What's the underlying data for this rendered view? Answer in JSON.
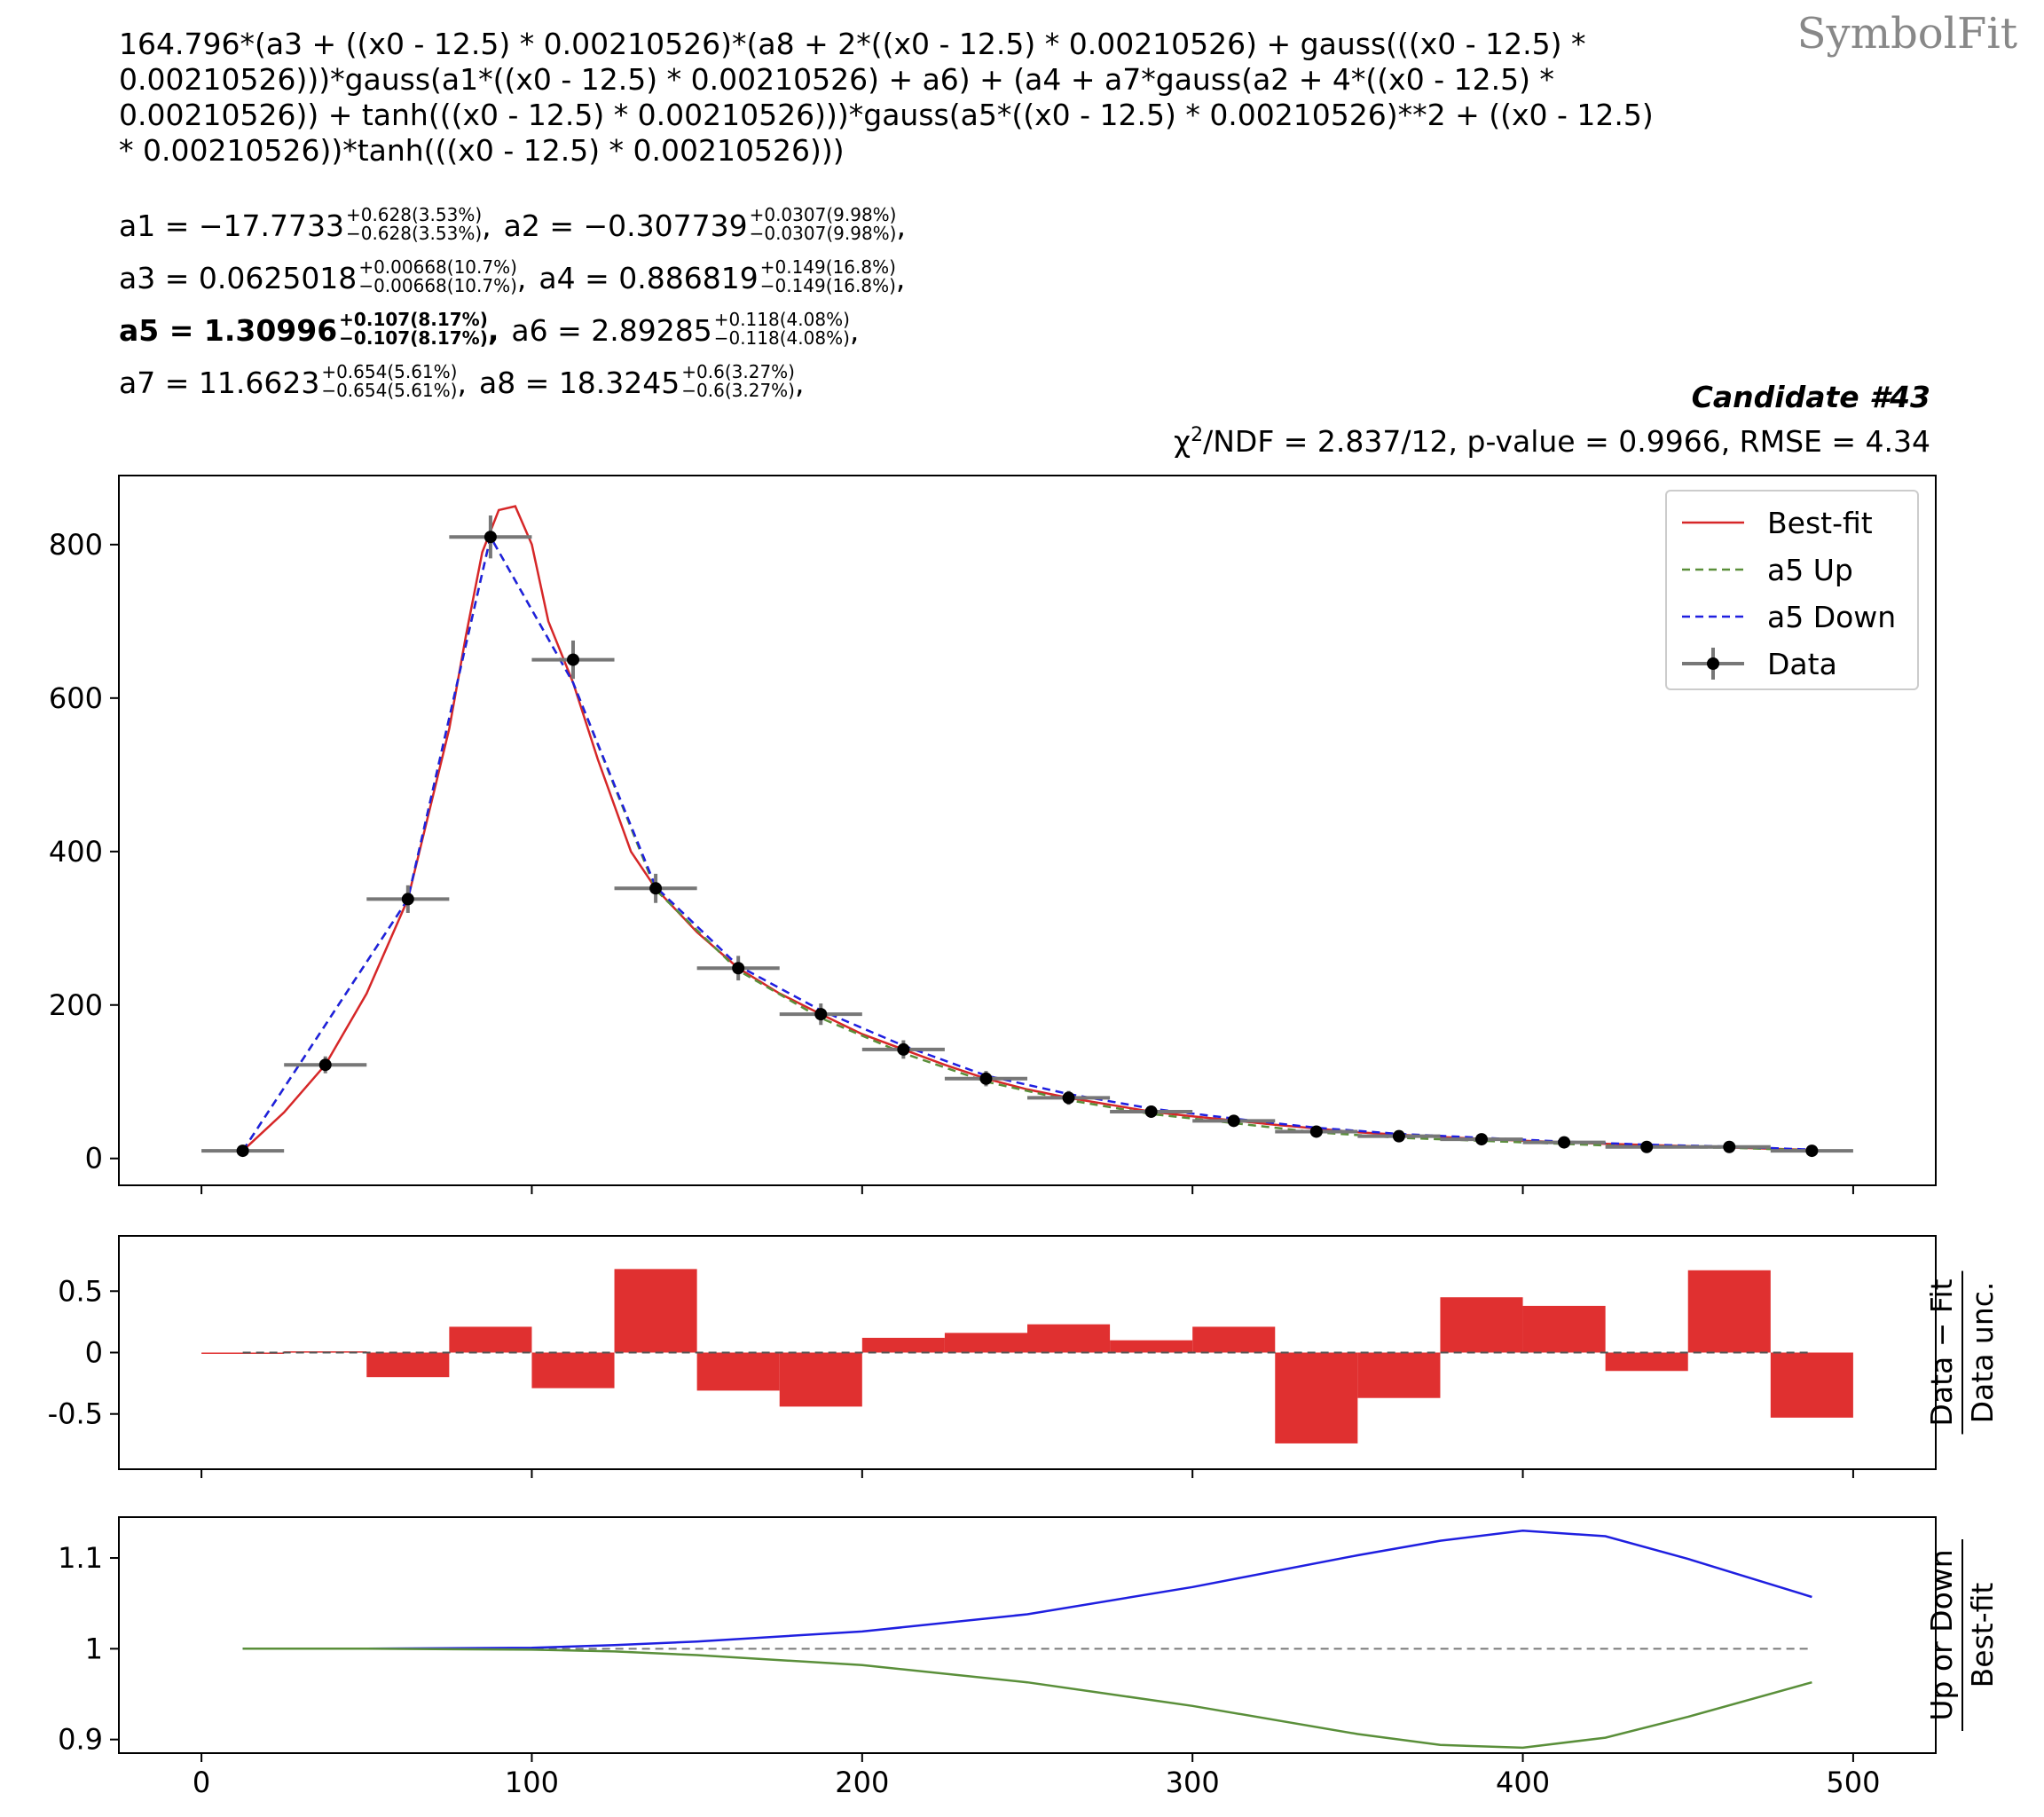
{
  "logo": "SymbolFit",
  "formula": "164.796*(a3 + ((x0 - 12.5) * 0.00210526)*(a8 + 2*((x0 - 12.5) * 0.00210526) + gauss(((x0 - 12.5) * 0.00210526)))*gauss(a1*((x0 - 12.5) * 0.00210526) + a6) + (a4 + a7*gauss(a2 + 4*((x0 - 12.5) * 0.00210526)) + tanh(((x0 - 12.5) * 0.00210526)))*gauss(a5*((x0 - 12.5) * 0.00210526)**2 + ((x0 - 12.5) * 0.00210526))*tanh(((x0 - 12.5) * 0.00210526)))",
  "parameters": [
    {
      "name": "a1",
      "value": "−17.7733",
      "up": "+0.628(3.53%)",
      "down": "−0.628(3.53%)"
    },
    {
      "name": "a2",
      "value": "−0.307739",
      "up": "+0.0307(9.98%)",
      "down": "−0.0307(9.98%)"
    },
    {
      "name": "a3",
      "value": "0.0625018",
      "up": "+0.00668(10.7%)",
      "down": "−0.00668(10.7%)"
    },
    {
      "name": "a4",
      "value": "0.886819",
      "up": "+0.149(16.8%)",
      "down": "−0.149(16.8%)"
    },
    {
      "name": "a5",
      "value": "1.30996",
      "up": "+0.107(8.17%)",
      "down": "−0.107(8.17%)",
      "bold": true
    },
    {
      "name": "a6",
      "value": "2.89285",
      "up": "+0.118(4.08%)",
      "down": "−0.118(4.08%)"
    },
    {
      "name": "a7",
      "value": "11.6623",
      "up": "+0.654(5.61%)",
      "down": "−0.654(5.61%)"
    },
    {
      "name": "a8",
      "value": "18.3245",
      "up": "+0.6(3.27%)",
      "down": "−0.6(3.27%)"
    }
  ],
  "candidate": "Candidate #43",
  "stats": {
    "chi2_label": "χ",
    "chi2_sup": "2",
    "text": "/NDF = 2.837/12, p-value = 0.9966, RMSE = 4.34"
  },
  "colors": {
    "fit": "#d62728",
    "up": "#5a8f3a",
    "down": "#1f1fe0",
    "data": "#000000",
    "xerr": "#777777",
    "residual": "#e03030"
  },
  "chart_data": [
    {
      "type": "scatter",
      "title": "",
      "xlabel": "",
      "ylabel": "",
      "xlim": [
        -25,
        525
      ],
      "ylim": [
        -35,
        890
      ],
      "xticks": [
        0,
        100,
        200,
        300,
        400,
        500
      ],
      "yticks": [
        0,
        200,
        400,
        600,
        800
      ],
      "legend": {
        "position": "top-right",
        "entries": [
          "Best-fit",
          "a5 Up",
          "a5 Down",
          "Data"
        ]
      },
      "data": {
        "x": [
          12.5,
          37.5,
          62.5,
          87.5,
          112.5,
          137.5,
          162.5,
          187.5,
          212.5,
          237.5,
          262.5,
          287.5,
          312.5,
          337.5,
          362.5,
          387.5,
          412.5,
          437.5,
          462.5,
          487.5
        ],
        "y": [
          10,
          122,
          338,
          810,
          650,
          352,
          248,
          188,
          142,
          104,
          79,
          61,
          49,
          35,
          29,
          25,
          21,
          15,
          15,
          10
        ],
        "yerr": [
          3,
          11,
          18,
          28,
          25,
          19,
          16,
          14,
          12,
          10,
          9,
          8,
          7,
          6,
          5,
          5,
          5,
          4,
          4,
          3
        ],
        "xerr": 12.5
      },
      "curves": [
        {
          "name": "Best-fit",
          "x": [
            12.5,
            25,
            37.5,
            50,
            62.5,
            75,
            80,
            85,
            90,
            95,
            100,
            105,
            112.5,
            120,
            130,
            137.5,
            150,
            162.5,
            175,
            187.5,
            200,
            212.5,
            225,
            237.5,
            250,
            262.5,
            275,
            287.5,
            300,
            325,
            350,
            375,
            400,
            425,
            450,
            487.5
          ],
          "y": [
            10,
            60,
            122,
            215,
            338,
            560,
            680,
            790,
            845,
            850,
            800,
            700,
            620,
            520,
            400,
            352,
            295,
            248,
            215,
            188,
            162,
            142,
            122,
            104,
            90,
            79,
            70,
            61,
            55,
            44,
            34,
            28,
            23,
            19,
            16,
            11
          ]
        },
        {
          "name": "a5 Up",
          "dashed": true,
          "x": [
            12.5,
            62.5,
            87.5,
            112.5,
            137.5,
            162.5,
            187.5,
            212.5,
            237.5,
            262.5,
            287.5,
            312.5,
            337.5,
            362.5,
            387.5,
            412.5,
            437.5,
            462.5,
            487.5
          ],
          "y": [
            10,
            338,
            810,
            620,
            350,
            245,
            183,
            137,
            100,
            76,
            58,
            46,
            34,
            27,
            23,
            19,
            15,
            14,
            10.5
          ]
        },
        {
          "name": "a5 Down",
          "dashed": true,
          "x": [
            12.5,
            62.5,
            87.5,
            112.5,
            137.5,
            162.5,
            187.5,
            212.5,
            237.5,
            262.5,
            287.5,
            312.5,
            337.5,
            362.5,
            387.5,
            412.5,
            437.5,
            462.5,
            487.5
          ],
          "y": [
            10,
            338,
            810,
            620,
            354,
            251,
            193,
            147,
            108,
            84,
            65,
            52,
            40,
            32,
            27,
            22,
            18,
            15.5,
            11.5
          ]
        }
      ]
    },
    {
      "type": "bar",
      "xlabel": "",
      "ylabel": "Data − Fit / Data unc.",
      "ylabel_num": "Data − Fit",
      "ylabel_den": "Data unc.",
      "ylim": [
        -0.95,
        0.95
      ],
      "yticks": [
        0.5,
        0,
        -0.5
      ],
      "ytick_labels": [
        "0.5",
        "0",
        "-0.5"
      ],
      "bin_width": 25,
      "x": [
        12.5,
        37.5,
        62.5,
        87.5,
        112.5,
        137.5,
        162.5,
        187.5,
        212.5,
        237.5,
        262.5,
        287.5,
        312.5,
        337.5,
        362.5,
        387.5,
        412.5,
        437.5,
        462.5,
        487.5
      ],
      "values": [
        -0.01,
        0.01,
        -0.2,
        0.21,
        -0.29,
        0.68,
        -0.31,
        -0.44,
        0.12,
        0.16,
        0.23,
        0.1,
        0.21,
        -0.74,
        -0.37,
        0.45,
        0.38,
        -0.15,
        0.67,
        -0.53
      ]
    },
    {
      "type": "line",
      "xlabel": "",
      "ylabel": "Up or Down / Best-fit",
      "ylabel_num": "Up or Down",
      "ylabel_den": "Best-fit",
      "ylim": [
        0.885,
        1.145
      ],
      "yticks": [
        1.1,
        1,
        0.9
      ],
      "ytick_labels": [
        "1.1",
        "1",
        "0.9"
      ],
      "series": [
        {
          "name": "a5 Down",
          "x": [
            12.5,
            50,
            100,
            125,
            150,
            200,
            250,
            300,
            350,
            375,
            400,
            425,
            450,
            487.5
          ],
          "y": [
            1.0,
            1.0,
            1.001,
            1.004,
            1.008,
            1.019,
            1.038,
            1.068,
            1.103,
            1.119,
            1.13,
            1.124,
            1.099,
            1.057
          ]
        },
        {
          "name": "a5 Up",
          "x": [
            12.5,
            50,
            100,
            125,
            150,
            200,
            250,
            300,
            350,
            375,
            400,
            425,
            450,
            487.5
          ],
          "y": [
            1.0,
            1.0,
            0.999,
            0.997,
            0.993,
            0.982,
            0.963,
            0.937,
            0.906,
            0.894,
            0.891,
            0.902,
            0.925,
            0.963
          ]
        }
      ]
    }
  ]
}
